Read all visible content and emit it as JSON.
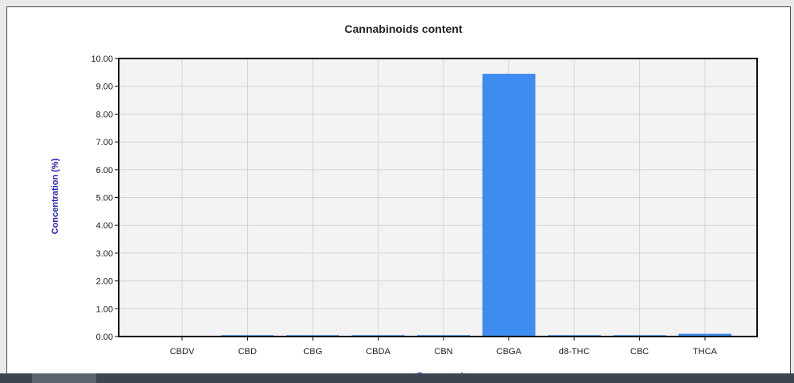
{
  "chart_data": {
    "type": "bar",
    "title": "Cannabinoids content",
    "xlabel": "Compound",
    "ylabel": "Concentration (%)",
    "categories": [
      "CBDV",
      "CBD",
      "CBG",
      "CBDA",
      "CBN",
      "CBGA",
      "d8-THC",
      "CBC",
      "THCA"
    ],
    "values": [
      0.0,
      0.05,
      0.05,
      0.05,
      0.05,
      9.45,
      0.05,
      0.05,
      0.1
    ],
    "ylim": [
      0,
      10
    ],
    "yticks": [
      "0.00",
      "1.00",
      "2.00",
      "3.00",
      "4.00",
      "5.00",
      "6.00",
      "7.00",
      "8.00",
      "9.00",
      "10.00"
    ],
    "grid": true,
    "legend": "none"
  },
  "colors": {
    "bar": "#3f8cf0",
    "plot_bg": "#f3f3f3",
    "grid": "#d4d4d4",
    "ylabel": "#2020b8",
    "xlabel": "#2020b8"
  }
}
